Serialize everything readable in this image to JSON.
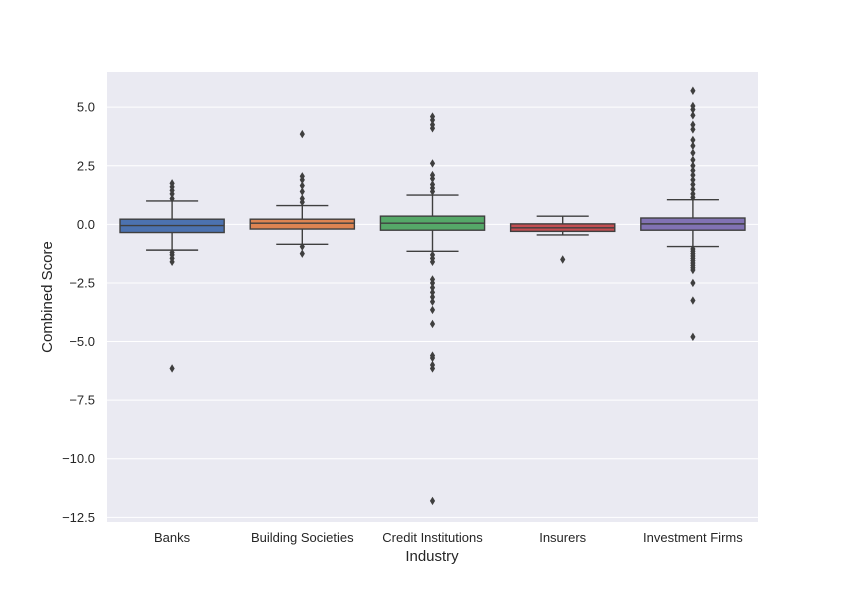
{
  "chart_data": {
    "type": "box",
    "xlabel": "Industry",
    "ylabel": "Combined Score",
    "ylim": [
      -12.7,
      6.5
    ],
    "grid": true,
    "yticks": [
      5.0,
      2.5,
      0.0,
      -2.5,
      -5.0,
      -7.5,
      -10.0,
      -12.5
    ],
    "ytick_labels": [
      "5.0",
      "2.5",
      "0.0",
      "−2.5",
      "−5.0",
      "−7.5",
      "−10.0",
      "−12.5"
    ],
    "categories": [
      "Banks",
      "Building Societies",
      "Credit Institutions",
      "Insurers",
      "Investment Firms"
    ],
    "boxes": [
      {
        "category": "Banks",
        "color": "#4c72b0",
        "whisker_low": -1.1,
        "q1": -0.35,
        "median": -0.05,
        "q3": 0.22,
        "whisker_high": 1.0,
        "outliers": [
          1.1,
          1.3,
          1.45,
          1.6,
          1.75,
          -1.2,
          -1.3,
          -1.45,
          -1.6,
          -6.15
        ]
      },
      {
        "category": "Building Societies",
        "color": "#dd8452",
        "whisker_low": -0.85,
        "q1": -0.2,
        "median": 0.05,
        "q3": 0.22,
        "whisker_high": 0.8,
        "outliers": [
          0.95,
          1.1,
          1.4,
          1.65,
          1.9,
          2.05,
          3.85,
          -0.95,
          -1.25
        ]
      },
      {
        "category": "Credit Institutions",
        "color": "#55a868",
        "whisker_low": -1.15,
        "q1": -0.25,
        "median": 0.05,
        "q3": 0.35,
        "whisker_high": 1.25,
        "outliers": [
          1.4,
          1.55,
          1.7,
          1.95,
          2.1,
          2.6,
          4.1,
          4.25,
          4.45,
          4.6,
          -1.3,
          -1.45,
          -1.6,
          -2.35,
          -2.5,
          -2.7,
          -2.9,
          -3.1,
          -3.3,
          -3.65,
          -4.25,
          -5.6,
          -5.7,
          -6.0,
          -6.15,
          -11.8
        ]
      },
      {
        "category": "Insurers",
        "color": "#c44e52",
        "whisker_low": -0.45,
        "q1": -0.3,
        "median": -0.15,
        "q3": 0.02,
        "whisker_high": 0.35,
        "outliers": [
          -1.5
        ]
      },
      {
        "category": "Investment Firms",
        "color": "#8172b3",
        "whisker_low": -0.95,
        "q1": -0.25,
        "median": 0.02,
        "q3": 0.27,
        "whisker_high": 1.05,
        "outliers": [
          1.15,
          1.3,
          1.5,
          1.7,
          1.9,
          2.1,
          2.3,
          2.5,
          2.75,
          3.05,
          3.35,
          3.6,
          4.05,
          4.25,
          4.65,
          4.9,
          5.05,
          5.7,
          -1.05,
          -1.15,
          -1.25,
          -1.35,
          -1.45,
          -1.55,
          -1.65,
          -1.75,
          -1.85,
          -1.95,
          -2.5,
          -3.25,
          -4.8
        ]
      }
    ]
  }
}
